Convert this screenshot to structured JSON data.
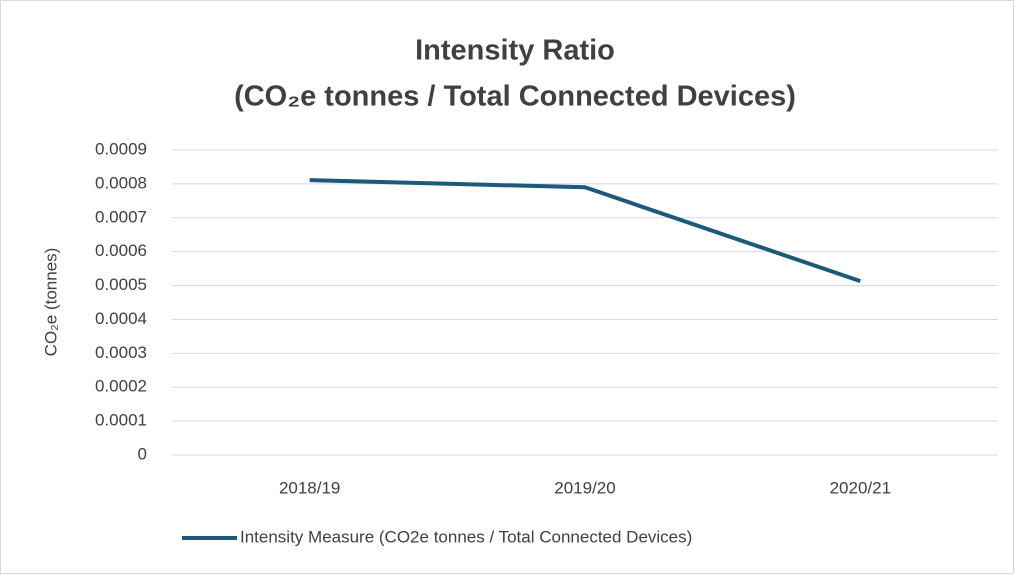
{
  "chart_data": {
    "type": "line",
    "title": [
      "Intensity Ratio",
      "(CO₂e tonnes / Total Connected Devices)"
    ],
    "y_label": "CO₂e (tonnes)",
    "categories": [
      "2018/19",
      "2019/20",
      "2020/21"
    ],
    "series": [
      {
        "name": "Intensity Measure (CO2e tonnes / Total Connected Devices)",
        "color": "#1b5a7a",
        "values": [
          0.000811,
          0.00079,
          0.000513
        ]
      }
    ],
    "ylim": [
      0,
      0.0009
    ],
    "yticks": [
      0,
      0.0001,
      0.0002,
      0.0003,
      0.0004,
      0.0005,
      0.0006,
      0.0007,
      0.0008,
      0.0009
    ],
    "grid": true,
    "legend": "bottom"
  }
}
